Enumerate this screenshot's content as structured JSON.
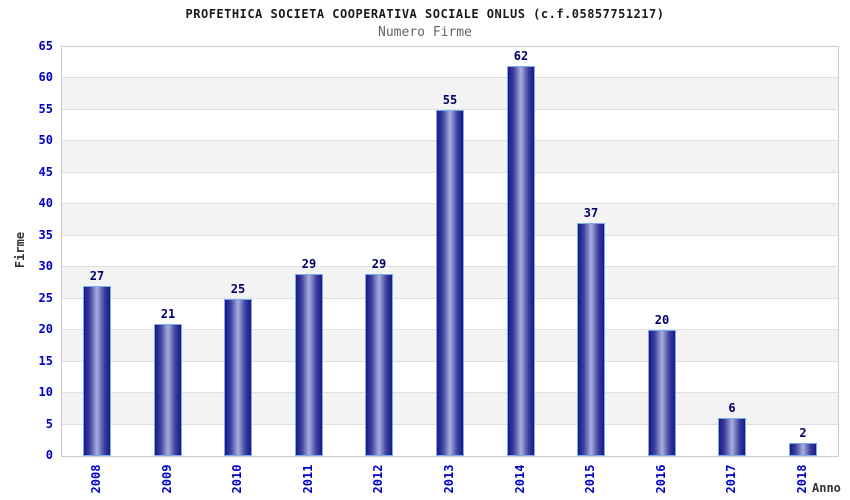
{
  "chart_data": {
    "type": "bar",
    "title": "PROFETHICA SOCIETA COOPERATIVA SOCIALE ONLUS (c.f.05857751217)",
    "subtitle": "Numero Firme",
    "xlabel": "Anno",
    "ylabel": "Firme",
    "categories": [
      "2008",
      "2009",
      "2010",
      "2011",
      "2012",
      "2013",
      "2014",
      "2015",
      "2016",
      "2017",
      "2018"
    ],
    "values": [
      27,
      21,
      25,
      29,
      29,
      55,
      62,
      37,
      20,
      6,
      2
    ],
    "ylim": [
      0,
      65
    ],
    "ytick_step": 5,
    "yticks": [
      0,
      5,
      10,
      15,
      20,
      25,
      30,
      35,
      40,
      45,
      50,
      55,
      60,
      65
    ],
    "legend": "none",
    "grid": "horizontal-gridlines-with-alternating-bands",
    "colors": {
      "title": "#1a1a1a",
      "subtitle": "#666666",
      "axis_label": "#333333",
      "tick_label": "#0000cc",
      "value_label": "#000066",
      "bar_dark": "#191987",
      "bar_mid": "#3c41a0",
      "bar_light": "#a9aedd",
      "bar_border": "#7aaee8",
      "band_gray": "#f3f3f3",
      "gridline": "#e0e0e0",
      "plot_border": "#cccccc",
      "background": "#ffffff"
    }
  }
}
